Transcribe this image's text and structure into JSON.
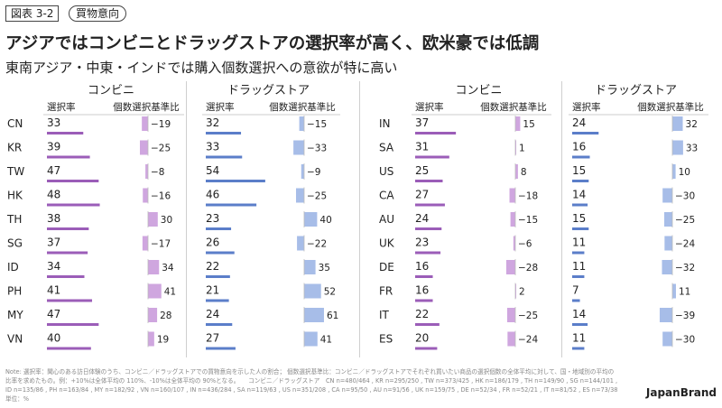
{
  "header": {
    "figure_no": "図表 3-2",
    "tag": "買物意向",
    "title": "アジアではコンビニとドラッグストアの選択率が高く、欧米豪では低調",
    "subtitle": "東南アジア・中東・インドでは購入個数選択への意欲が特に高い"
  },
  "colors": {
    "konbini_rate": "#9b5db8",
    "konbini_index": "#cfa6df",
    "drug_rate": "#5b7ec9",
    "drug_index": "#a7bde8",
    "text": "#222222",
    "rule": "#cccccc"
  },
  "labels": {
    "konbini": "コンビニ",
    "drug": "ドラッグストア",
    "rate_col": "選択率",
    "index_col": "個数選択基準比"
  },
  "chart_data": {
    "type": "bar",
    "panels": [
      {
        "countries": [
          "CN",
          "KR",
          "TW",
          "HK",
          "TH",
          "SG",
          "ID",
          "PH",
          "MY",
          "VN"
        ],
        "konbini": {
          "rate": [
            33,
            39,
            47,
            48,
            38,
            37,
            34,
            41,
            47,
            40
          ],
          "index": [
            -19,
            -25,
            -8,
            -16,
            30,
            -17,
            34,
            41,
            28,
            19
          ]
        },
        "drug": {
          "rate": [
            32,
            33,
            54,
            46,
            23,
            26,
            22,
            21,
            24,
            27
          ],
          "index": [
            -15,
            -33,
            -9,
            -25,
            40,
            -22,
            35,
            52,
            61,
            41
          ]
        }
      },
      {
        "countries": [
          "IN",
          "SA",
          "US",
          "CA",
          "AU",
          "UK",
          "DE",
          "FR",
          "IT",
          "ES"
        ],
        "konbini": {
          "rate": [
            37,
            31,
            25,
            27,
            24,
            23,
            16,
            16,
            22,
            20
          ],
          "index": [
            15,
            1,
            8,
            -18,
            -15,
            -6,
            -28,
            2,
            -25,
            -24
          ]
        },
        "drug": {
          "rate": [
            24,
            16,
            15,
            14,
            15,
            11,
            11,
            7,
            14,
            11
          ],
          "index": [
            32,
            33,
            10,
            -30,
            -25,
            -24,
            -32,
            11,
            -39,
            -30
          ]
        }
      }
    ]
  },
  "footer": {
    "note": "Note: 選択率：聞心のある訪日体験のうち、コンビニ／ドラッグストアでの買物意向を示した人の割合； 個数選択基準比：コンビニ／ドラッグストアでそれぞれ買いたい商品の選択個数の全体平均に対して、国・地域別の平均の比率を求めたもの。例：+10%は全体平均の 110%、-10%は全体平均の 90%となる。　　コンビニ／ドラッグストア　CN n=480/464 , KR n=295/250 , TW n=373/425 , HK n=186/179 , TH n=149/90 , SG n=144/101 , ID n=135/86 , PH n=163/84 , MY n=182/92 , VN n=160/107 , IN n=436/284 , SA n=119/63 , US n=351/208 , CA n=95/50 , AU n=91/56 , UK n=159/75 , DE n=52/34 , FR n=52/21 , IT n=81/52 , ES n=73/38　　　単位：%",
    "brand": "JapanBrand"
  }
}
